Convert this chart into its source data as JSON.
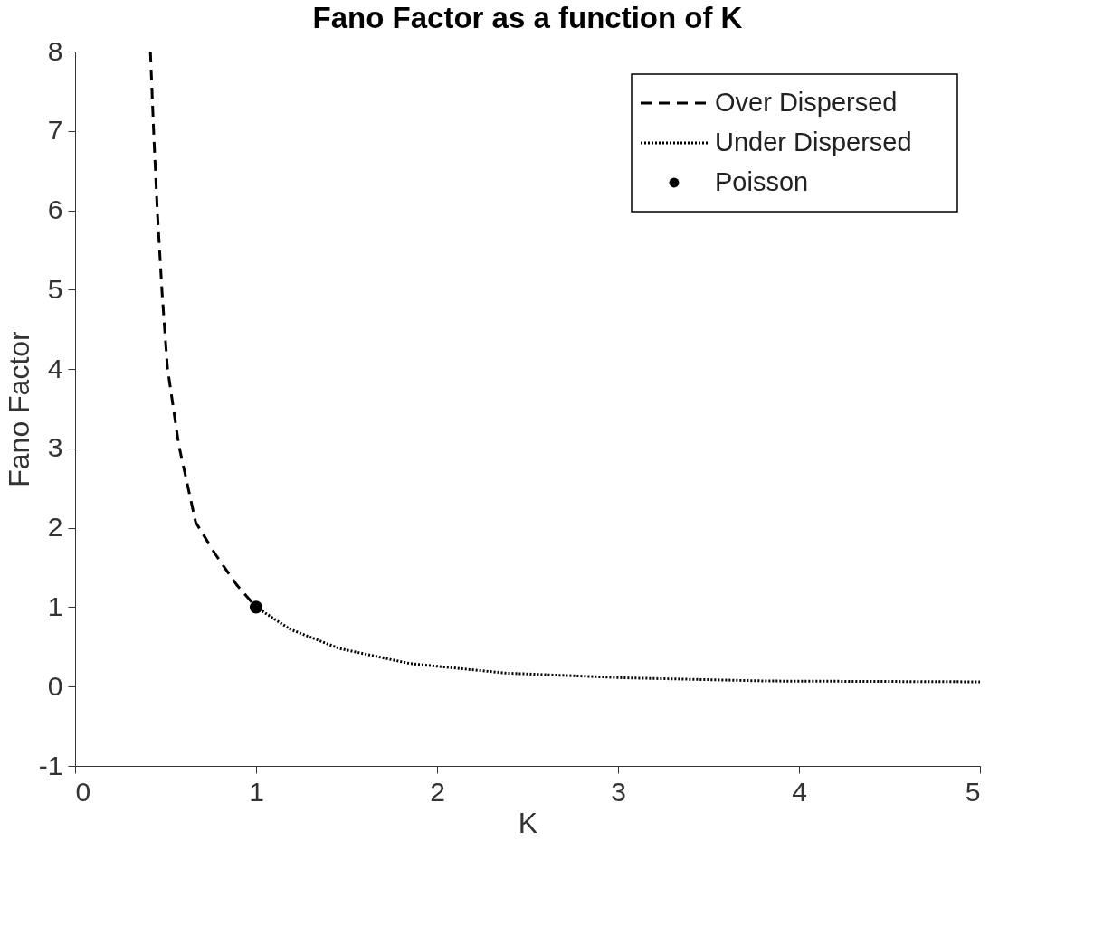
{
  "chart_data": {
    "type": "line",
    "title": "Fano Factor as a function of K",
    "xlabel": "K",
    "ylabel": "Fano Factor",
    "xlim": [
      0,
      5
    ],
    "ylim": [
      -1,
      8
    ],
    "xticks": [
      0,
      1,
      2,
      3,
      4,
      5
    ],
    "yticks": [
      -1,
      0,
      1,
      2,
      3,
      4,
      5,
      6,
      7,
      8
    ],
    "legend": "top right",
    "series": [
      {
        "name": "Over Dispersed",
        "line_style": "dashed",
        "color": "#000000",
        "x": [
          0.416,
          0.435,
          0.455,
          0.48,
          0.51,
          0.573,
          0.666,
          0.777,
          0.89,
          1.0
        ],
        "values": [
          8,
          6.94,
          5.96,
          4.98,
          4.02,
          3.04,
          2.07,
          1.66,
          1.29,
          1.0
        ]
      },
      {
        "name": "Under Dispersed",
        "line_style": "dotted",
        "color": "#000000",
        "x": [
          1.0,
          1.19,
          1.46,
          1.85,
          2.38,
          3.04,
          3.83,
          5.0
        ],
        "values": [
          1.0,
          0.72,
          0.48,
          0.29,
          0.17,
          0.11,
          0.07,
          0.06
        ]
      },
      {
        "name": "Poisson",
        "type": "scatter",
        "marker": "circle",
        "color": "#000000",
        "x": [
          1
        ],
        "values": [
          1
        ]
      }
    ]
  }
}
